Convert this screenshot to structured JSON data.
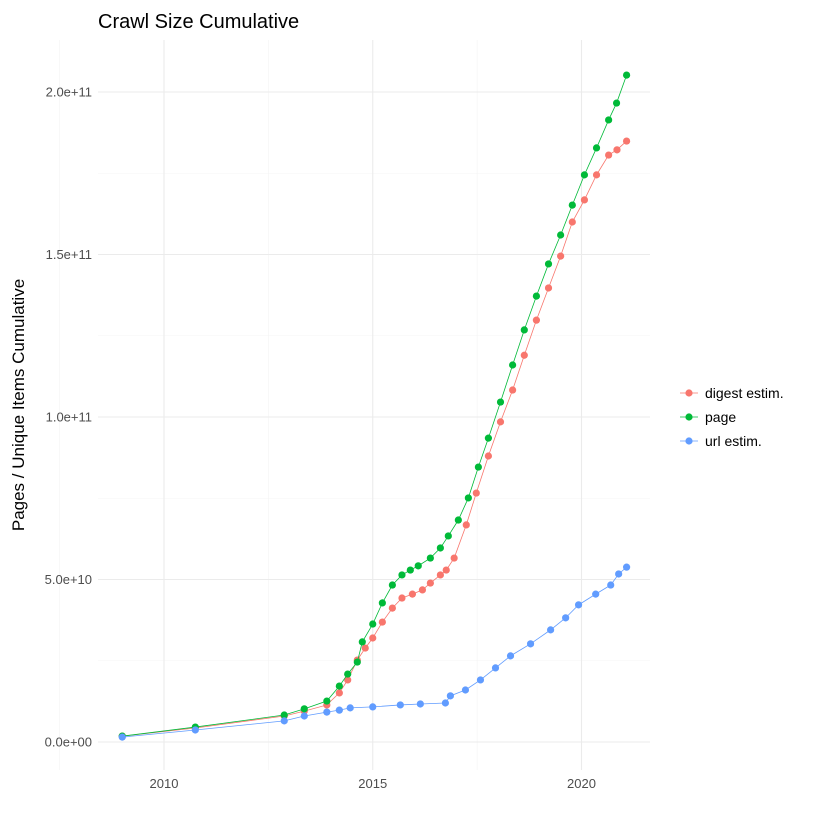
{
  "chart_data": {
    "type": "line",
    "title": "Crawl Size Cumulative",
    "xlabel": "",
    "ylabel": "Pages / Unique Items Cumulative",
    "xlim": [
      2008.6,
      2021.7
    ],
    "ylim": [
      -7000000000.0,
      220000000000.0
    ],
    "x_ticks": [
      2010,
      2015,
      2020
    ],
    "x_tick_labels": [
      "2010",
      "2015",
      "2020"
    ],
    "y_ticks": [
      0,
      50000000000.0,
      100000000000.0,
      150000000000.0,
      200000000000.0
    ],
    "y_tick_labels": [
      "0.0e+00",
      "5.0e+10",
      "1.0e+11",
      "1.5e+11",
      "2.0e+11"
    ],
    "grid": true,
    "legend_position": "right",
    "series": [
      {
        "name": "digest estim.",
        "color": "#F8766D",
        "points": [
          [
            2009.0,
            1800000000.0
          ],
          [
            2010.75,
            4300000000.0
          ],
          [
            2012.88,
            8000000000.0
          ],
          [
            2013.36,
            9500000000.0
          ],
          [
            2013.9,
            11400000000.0
          ],
          [
            2014.2,
            15100000000.0
          ],
          [
            2014.4,
            19100000000.0
          ],
          [
            2014.63,
            25200000000.0
          ],
          [
            2014.82,
            28900000000.0
          ],
          [
            2015.0,
            32000000000.0
          ],
          [
            2015.23,
            36900000000.0
          ],
          [
            2015.47,
            41200000000.0
          ],
          [
            2015.7,
            44300000000.0
          ],
          [
            2015.95,
            45500000000.0
          ],
          [
            2016.19,
            46800000000.0
          ],
          [
            2016.38,
            48900000000.0
          ],
          [
            2016.62,
            51400000000.0
          ],
          [
            2016.76,
            52900000000.0
          ],
          [
            2016.95,
            56600000000.0
          ],
          [
            2017.24,
            66800000000.0
          ],
          [
            2017.48,
            76600000000.0
          ],
          [
            2017.77,
            88000000000.0
          ],
          [
            2018.06,
            98500000000.0
          ],
          [
            2018.35,
            108300000000.0
          ],
          [
            2018.63,
            119000000000.0
          ],
          [
            2018.92,
            129800000000.0
          ],
          [
            2019.21,
            139700000000.0
          ],
          [
            2019.5,
            149500000000.0
          ],
          [
            2019.78,
            160000000000.0
          ],
          [
            2020.07,
            166800000000.0
          ],
          [
            2020.36,
            174500000000.0
          ],
          [
            2020.65,
            180600000000.0
          ],
          [
            2020.85,
            182200000000.0
          ],
          [
            2021.08,
            184900000000.0
          ]
        ]
      },
      {
        "name": "page",
        "color": "#00BA38",
        "points": [
          [
            2009.0,
            1800000000.0
          ],
          [
            2010.75,
            4600000000.0
          ],
          [
            2012.88,
            8300000000.0
          ],
          [
            2013.36,
            10200000000.0
          ],
          [
            2013.9,
            12600000000.0
          ],
          [
            2014.2,
            17200000000.0
          ],
          [
            2014.4,
            20900000000.0
          ],
          [
            2014.63,
            24600000000.0
          ],
          [
            2014.75,
            30800000000.0
          ],
          [
            2015.0,
            36300000000.0
          ],
          [
            2015.23,
            42800000000.0
          ],
          [
            2015.47,
            48300000000.0
          ],
          [
            2015.7,
            51400000000.0
          ],
          [
            2015.9,
            52900000000.0
          ],
          [
            2016.09,
            54200000000.0
          ],
          [
            2016.38,
            56600000000.0
          ],
          [
            2016.62,
            59700000000.0
          ],
          [
            2016.81,
            63400000000.0
          ],
          [
            2017.05,
            68300000000.0
          ],
          [
            2017.29,
            75100000000.0
          ],
          [
            2017.53,
            84600000000.0
          ],
          [
            2017.77,
            93500000000.0
          ],
          [
            2018.06,
            104600000000.0
          ],
          [
            2018.35,
            116000000000.0
          ],
          [
            2018.63,
            126800000000.0
          ],
          [
            2018.92,
            137200000000.0
          ],
          [
            2019.21,
            147100000000.0
          ],
          [
            2019.5,
            156000000000.0
          ],
          [
            2019.78,
            165200000000.0
          ],
          [
            2020.07,
            174500000000.0
          ],
          [
            2020.36,
            182800000000.0
          ],
          [
            2020.65,
            191400000000.0
          ],
          [
            2020.84,
            196600000000.0
          ],
          [
            2021.08,
            205200000000.0
          ]
        ]
      },
      {
        "name": "url estim.",
        "color": "#619CFF",
        "points": [
          [
            2009.0,
            1500000000.0
          ],
          [
            2010.75,
            3700000000.0
          ],
          [
            2012.88,
            6500000000.0
          ],
          [
            2013.36,
            8000000000.0
          ],
          [
            2013.9,
            9200000000.0
          ],
          [
            2014.2,
            9800000000.0
          ],
          [
            2014.46,
            10500000000.0
          ],
          [
            2015.0,
            10800000000.0
          ],
          [
            2015.66,
            11400000000.0
          ],
          [
            2016.14,
            11700000000.0
          ],
          [
            2016.74,
            12000000000.0
          ],
          [
            2016.86,
            14200000000.0
          ],
          [
            2017.22,
            16000000000.0
          ],
          [
            2017.58,
            19100000000.0
          ],
          [
            2017.94,
            22800000000.0
          ],
          [
            2018.3,
            26500000000.0
          ],
          [
            2018.78,
            30200000000.0
          ],
          [
            2019.26,
            34500000000.0
          ],
          [
            2019.62,
            38200000000.0
          ],
          [
            2019.93,
            42200000000.0
          ],
          [
            2020.34,
            45500000000.0
          ],
          [
            2020.7,
            48300000000.0
          ],
          [
            2020.89,
            51700000000.0
          ],
          [
            2021.08,
            53800000000.0
          ]
        ]
      }
    ]
  }
}
